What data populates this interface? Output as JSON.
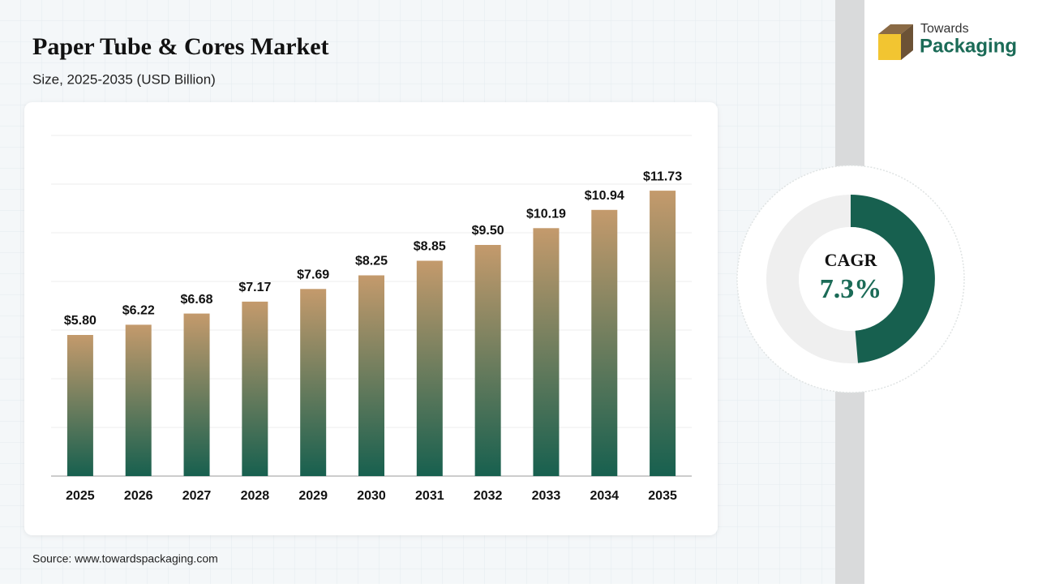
{
  "chart_data": {
    "type": "bar",
    "title": "Paper Tube & Cores Market",
    "subtitle": "Size, 2025-2035 (USD Billion)",
    "categories": [
      "2025",
      "2026",
      "2027",
      "2028",
      "2029",
      "2030",
      "2031",
      "2032",
      "2033",
      "2034",
      "2035"
    ],
    "values": [
      5.8,
      6.22,
      6.68,
      7.17,
      7.69,
      8.25,
      8.85,
      9.5,
      10.19,
      10.94,
      11.73
    ],
    "value_labels": [
      "$5.80",
      "$6.22",
      "$6.68",
      "$7.17",
      "$7.69",
      "$8.25",
      "$8.85",
      "$9.50",
      "$10.19",
      "$10.94",
      "$11.73"
    ],
    "colors": [
      "#c49a6c",
      "#17604f"
    ],
    "ylim": [
      0,
      14
    ],
    "yticks": [
      0,
      2,
      4,
      6,
      8,
      10,
      12,
      14
    ],
    "grid": true,
    "cagr": {
      "label": "CAGR",
      "value": 7.3,
      "value_label": "7.3%"
    },
    "source": "Source: www.towardspackaging.com",
    "brand": {
      "line1": "Towards",
      "line2": "Packaging"
    }
  }
}
